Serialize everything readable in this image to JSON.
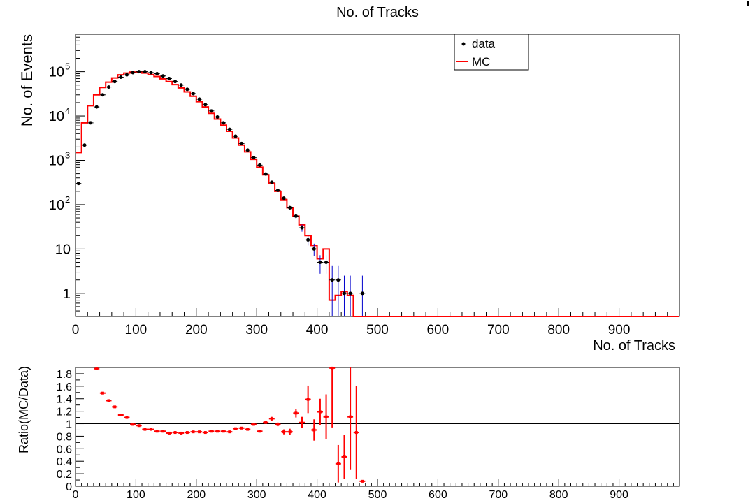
{
  "chart_data": [
    {
      "type": "line",
      "title": "No. of Tracks",
      "xlabel": "No. of Tracks",
      "ylabel": "No. of Events",
      "yscale": "log",
      "xlim": [
        0,
        1000
      ],
      "ylim": [
        0.3,
        700000
      ],
      "x_ticks": [
        "0",
        "100",
        "200",
        "300",
        "400",
        "500",
        "600",
        "700",
        "800",
        "900"
      ],
      "y_ticks": [
        {
          "value": 1,
          "label": "1"
        },
        {
          "value": 10,
          "label": "10"
        },
        {
          "value": 100,
          "label": "10",
          "exp": "2"
        },
        {
          "value": 1000,
          "label": "10",
          "exp": "3"
        },
        {
          "value": 10000,
          "label": "10",
          "exp": "4"
        },
        {
          "value": 100000,
          "label": "10",
          "exp": "5"
        }
      ],
      "legend": {
        "placement": "top-right",
        "entries": [
          {
            "name": "data",
            "marker": "point",
            "color": "#000000"
          },
          {
            "name": "MC",
            "marker": "line",
            "color": "#ff0000"
          }
        ]
      },
      "bin_width": 10,
      "series": [
        {
          "name": "data",
          "color": "#000000",
          "error_color": "#0000cc",
          "points": [
            {
              "x": 5,
              "y": 300
            },
            {
              "x": 15,
              "y": 2200
            },
            {
              "x": 25,
              "y": 7000
            },
            {
              "x": 35,
              "y": 16000
            },
            {
              "x": 45,
              "y": 30000
            },
            {
              "x": 55,
              "y": 45000
            },
            {
              "x": 65,
              "y": 60000
            },
            {
              "x": 75,
              "y": 75000
            },
            {
              "x": 85,
              "y": 85000
            },
            {
              "x": 95,
              "y": 95000
            },
            {
              "x": 105,
              "y": 100000
            },
            {
              "x": 115,
              "y": 100000
            },
            {
              "x": 125,
              "y": 95000
            },
            {
              "x": 135,
              "y": 90000
            },
            {
              "x": 145,
              "y": 80000
            },
            {
              "x": 155,
              "y": 70000
            },
            {
              "x": 165,
              "y": 60000
            },
            {
              "x": 175,
              "y": 50000
            },
            {
              "x": 185,
              "y": 40000
            },
            {
              "x": 195,
              "y": 32000
            },
            {
              "x": 205,
              "y": 24000
            },
            {
              "x": 215,
              "y": 18000
            },
            {
              "x": 225,
              "y": 13000
            },
            {
              "x": 235,
              "y": 9500
            },
            {
              "x": 245,
              "y": 7000
            },
            {
              "x": 255,
              "y": 5000
            },
            {
              "x": 265,
              "y": 3500
            },
            {
              "x": 275,
              "y": 2400
            },
            {
              "x": 285,
              "y": 1700
            },
            {
              "x": 295,
              "y": 1150
            },
            {
              "x": 305,
              "y": 780
            },
            {
              "x": 315,
              "y": 490
            },
            {
              "x": 325,
              "y": 320
            },
            {
              "x": 335,
              "y": 210
            },
            {
              "x": 345,
              "y": 140
            },
            {
              "x": 355,
              "y": 85
            },
            {
              "x": 365,
              "y": 55
            },
            {
              "x": 375,
              "y": 30
            },
            {
              "x": 385,
              "y": 16
            },
            {
              "x": 395,
              "y": 10
            },
            {
              "x": 405,
              "y": 5
            },
            {
              "x": 415,
              "y": 5
            },
            {
              "x": 425,
              "y": 2
            },
            {
              "x": 435,
              "y": 2
            },
            {
              "x": 445,
              "y": 1
            },
            {
              "x": 455,
              "y": 1
            },
            {
              "x": 475,
              "y": 1
            }
          ]
        },
        {
          "name": "MC",
          "color": "#ff0000",
          "bins": [
            {
              "x": 0,
              "y": 1500
            },
            {
              "x": 10,
              "y": 7000
            },
            {
              "x": 20,
              "y": 17000
            },
            {
              "x": 30,
              "y": 30000
            },
            {
              "x": 40,
              "y": 44000
            },
            {
              "x": 50,
              "y": 58000
            },
            {
              "x": 60,
              "y": 72000
            },
            {
              "x": 70,
              "y": 85000
            },
            {
              "x": 80,
              "y": 93000
            },
            {
              "x": 90,
              "y": 98000
            },
            {
              "x": 100,
              "y": 98000
            },
            {
              "x": 110,
              "y": 93000
            },
            {
              "x": 120,
              "y": 86000
            },
            {
              "x": 130,
              "y": 78000
            },
            {
              "x": 140,
              "y": 69000
            },
            {
              "x": 150,
              "y": 60000
            },
            {
              "x": 160,
              "y": 51000
            },
            {
              "x": 170,
              "y": 43000
            },
            {
              "x": 180,
              "y": 35000
            },
            {
              "x": 190,
              "y": 28000
            },
            {
              "x": 200,
              "y": 21000
            },
            {
              "x": 210,
              "y": 16000
            },
            {
              "x": 220,
              "y": 11500
            },
            {
              "x": 230,
              "y": 8500
            },
            {
              "x": 240,
              "y": 6200
            },
            {
              "x": 250,
              "y": 4500
            },
            {
              "x": 260,
              "y": 3200
            },
            {
              "x": 270,
              "y": 2200
            },
            {
              "x": 280,
              "y": 1550
            },
            {
              "x": 290,
              "y": 1050
            },
            {
              "x": 300,
              "y": 700
            },
            {
              "x": 310,
              "y": 470
            },
            {
              "x": 320,
              "y": 300
            },
            {
              "x": 330,
              "y": 200
            },
            {
              "x": 340,
              "y": 130
            },
            {
              "x": 350,
              "y": 85
            },
            {
              "x": 360,
              "y": 55
            },
            {
              "x": 370,
              "y": 35
            },
            {
              "x": 380,
              "y": 20
            },
            {
              "x": 390,
              "y": 12
            },
            {
              "x": 400,
              "y": 6
            },
            {
              "x": 410,
              "y": 10
            },
            {
              "x": 420,
              "y": 0.7
            },
            {
              "x": 430,
              "y": 0.9
            },
            {
              "x": 440,
              "y": 1.1
            },
            {
              "x": 450,
              "y": 0.9
            },
            {
              "x": 460,
              "y": 0
            }
          ]
        }
      ]
    },
    {
      "type": "scatter",
      "title": "",
      "xlabel": "",
      "ylabel": "Ratio(MC/Data)",
      "xlim": [
        0,
        1000
      ],
      "ylim": [
        0,
        1.9
      ],
      "reference_line": 1,
      "x_ticks": [
        "0",
        "100",
        "200",
        "300",
        "400",
        "500",
        "600",
        "700",
        "800",
        "900"
      ],
      "y_ticks": [
        "0",
        "0.2",
        "0.4",
        "0.6",
        "0.8",
        "1",
        "1.2",
        "1.4",
        "1.6",
        "1.8"
      ],
      "series": [
        {
          "name": "",
          "color": "#ff0000",
          "points": [
            {
              "x": 35,
              "y": 1.88,
              "err": 0.01
            },
            {
              "x": 45,
              "y": 1.49,
              "err": 0.01
            },
            {
              "x": 55,
              "y": 1.37,
              "err": 0.01
            },
            {
              "x": 65,
              "y": 1.27,
              "err": 0.01
            },
            {
              "x": 75,
              "y": 1.14,
              "err": 0.01
            },
            {
              "x": 85,
              "y": 1.1,
              "err": 0.01
            },
            {
              "x": 95,
              "y": 0.99,
              "err": 0.01
            },
            {
              "x": 105,
              "y": 0.97,
              "err": 0.01
            },
            {
              "x": 115,
              "y": 0.91,
              "err": 0.01
            },
            {
              "x": 125,
              "y": 0.91,
              "err": 0.01
            },
            {
              "x": 135,
              "y": 0.88,
              "err": 0.01
            },
            {
              "x": 145,
              "y": 0.88,
              "err": 0.01
            },
            {
              "x": 155,
              "y": 0.85,
              "err": 0.01
            },
            {
              "x": 165,
              "y": 0.86,
              "err": 0.01
            },
            {
              "x": 175,
              "y": 0.85,
              "err": 0.01
            },
            {
              "x": 185,
              "y": 0.86,
              "err": 0.01
            },
            {
              "x": 195,
              "y": 0.87,
              "err": 0.01
            },
            {
              "x": 205,
              "y": 0.87,
              "err": 0.01
            },
            {
              "x": 215,
              "y": 0.86,
              "err": 0.01
            },
            {
              "x": 225,
              "y": 0.88,
              "err": 0.01
            },
            {
              "x": 235,
              "y": 0.88,
              "err": 0.01
            },
            {
              "x": 245,
              "y": 0.88,
              "err": 0.01
            },
            {
              "x": 255,
              "y": 0.87,
              "err": 0.01
            },
            {
              "x": 265,
              "y": 0.92,
              "err": 0.01
            },
            {
              "x": 275,
              "y": 0.93,
              "err": 0.01
            },
            {
              "x": 285,
              "y": 0.91,
              "err": 0.02
            },
            {
              "x": 295,
              "y": 0.99,
              "err": 0.02
            },
            {
              "x": 305,
              "y": 0.88,
              "err": 0.02
            },
            {
              "x": 315,
              "y": 1.02,
              "err": 0.02
            },
            {
              "x": 325,
              "y": 1.08,
              "err": 0.03
            },
            {
              "x": 335,
              "y": 0.99,
              "err": 0.03
            },
            {
              "x": 345,
              "y": 0.87,
              "err": 0.04
            },
            {
              "x": 355,
              "y": 0.87,
              "err": 0.05
            },
            {
              "x": 365,
              "y": 1.17,
              "err": 0.07
            },
            {
              "x": 375,
              "y": 1.02,
              "err": 0.09
            },
            {
              "x": 385,
              "y": 1.39,
              "err": 0.22
            },
            {
              "x": 395,
              "y": 0.9,
              "err": 0.17
            },
            {
              "x": 405,
              "y": 1.19,
              "err": 0.21
            },
            {
              "x": 415,
              "y": 1.11,
              "err": 0.36
            },
            {
              "x": 425,
              "y": 1.89,
              "err": 0.95
            },
            {
              "x": 435,
              "y": 0.36,
              "err": 0.3
            },
            {
              "x": 445,
              "y": 0.47,
              "err": 0.35
            },
            {
              "x": 455,
              "y": 1.11,
              "err": 0.85
            },
            {
              "x": 465,
              "y": 0.86,
              "err": 0.74
            },
            {
              "x": 475,
              "y": 0.08,
              "err": 0.02
            }
          ]
        }
      ]
    }
  ]
}
